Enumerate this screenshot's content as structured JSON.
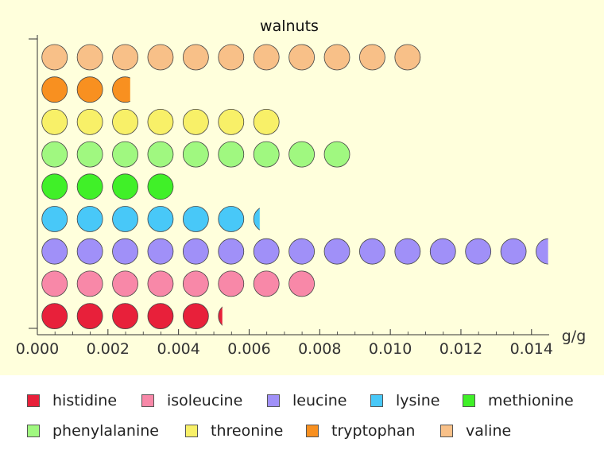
{
  "chart_data": {
    "type": "bar",
    "title": "walnuts",
    "xlabel": "g/g",
    "ylabel": "",
    "xlim": [
      0,
      0.0145
    ],
    "xticks": [
      "0.000",
      "0.002",
      "0.004",
      "0.006",
      "0.008",
      "0.010",
      "0.012",
      "0.014"
    ],
    "xtick_values": [
      0,
      0.002,
      0.004,
      0.006,
      0.008,
      0.01,
      0.012,
      0.014
    ],
    "unit_per_circle": 0.001,
    "grid": false,
    "legend_position": "bottom",
    "categories": [
      "histidine",
      "isoleucine",
      "leucine",
      "lysine",
      "methionine",
      "phenylalanine",
      "threonine",
      "tryptophan",
      "valine"
    ],
    "series": [
      {
        "name": "histidine",
        "value": 0.00524,
        "color": "#e8203a"
      },
      {
        "name": "isoleucine",
        "value": 0.00799,
        "color": "#f888a8"
      },
      {
        "name": "leucine",
        "value": 0.01447,
        "color": "#a090f8"
      },
      {
        "name": "lysine",
        "value": 0.0063,
        "color": "#48c8f8"
      },
      {
        "name": "methionine",
        "value": 0.00387,
        "color": "#40f028"
      },
      {
        "name": "phenylalanine",
        "value": 0.009,
        "color": "#a0f880"
      },
      {
        "name": "threonine",
        "value": 0.007,
        "color": "#f8f068"
      },
      {
        "name": "tryptophan",
        "value": 0.00263,
        "color": "#f89020"
      },
      {
        "name": "valine",
        "value": 0.01105,
        "color": "#f8c088"
      }
    ]
  }
}
